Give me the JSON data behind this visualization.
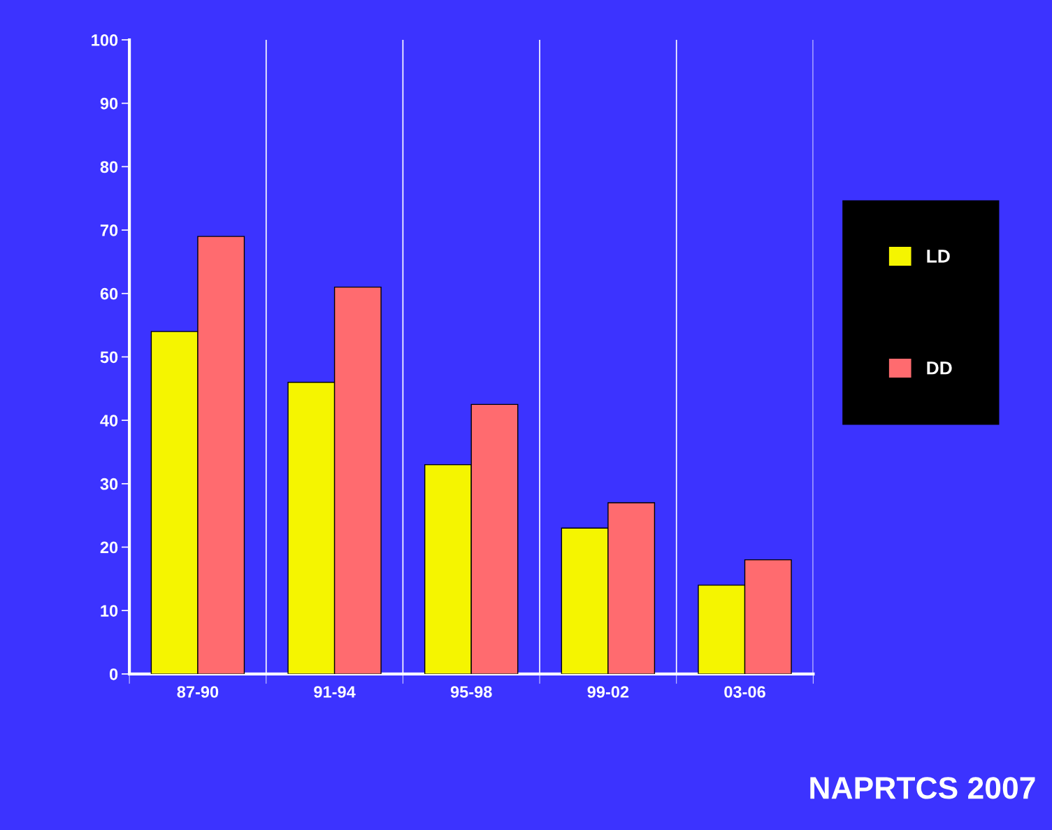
{
  "chart_data": {
    "type": "bar",
    "categories": [
      "87-90",
      "91-94",
      "95-98",
      "99-02",
      "03-06"
    ],
    "series": [
      {
        "name": "LD",
        "color": "#f5f500",
        "values": [
          54,
          46,
          33,
          23,
          14
        ]
      },
      {
        "name": "DD",
        "color": "#ff6b6f",
        "values": [
          69,
          61,
          42.5,
          27,
          18
        ]
      }
    ],
    "ylim": [
      0,
      100
    ],
    "yticks": [
      0,
      10,
      20,
      30,
      40,
      50,
      60,
      70,
      80,
      90,
      100
    ],
    "grid": "x",
    "legend": "right",
    "annotations": [
      "NAPRTCS 2007"
    ]
  }
}
